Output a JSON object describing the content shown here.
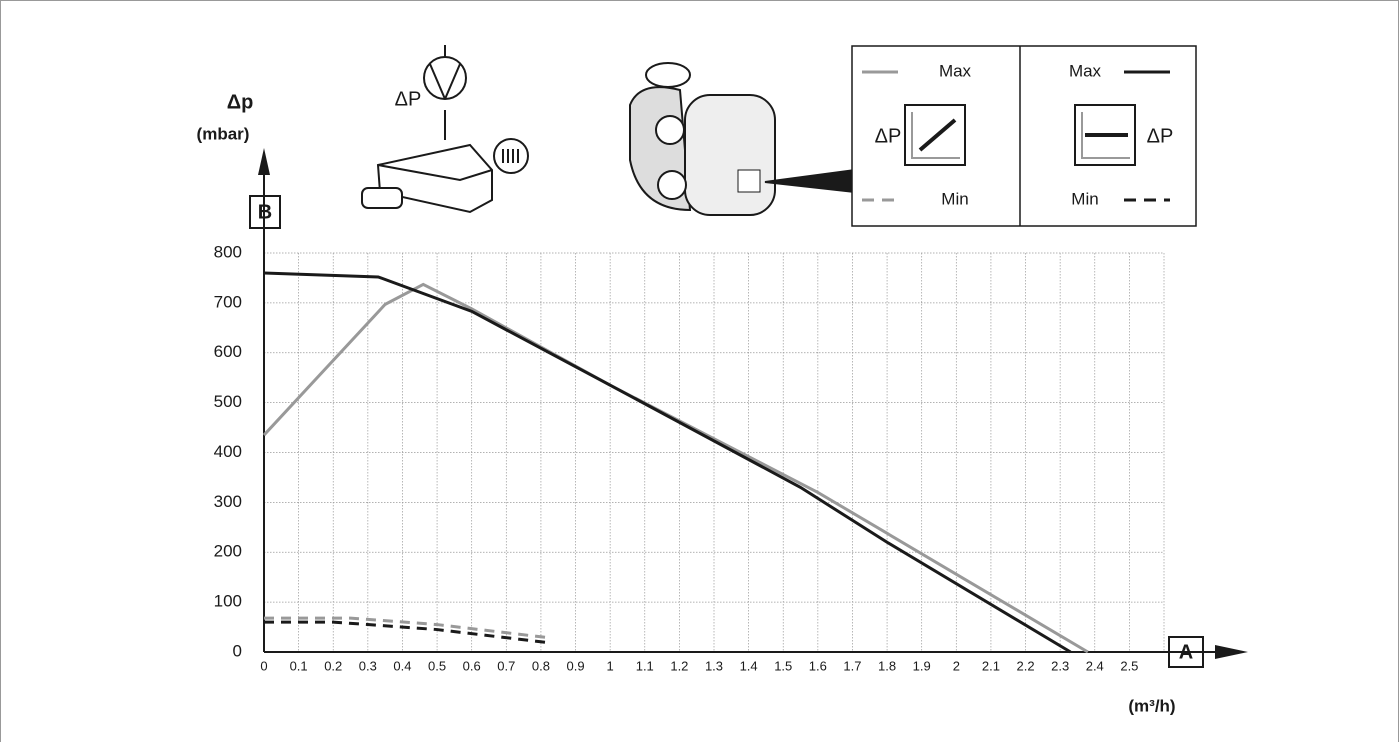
{
  "chart_data": {
    "type": "line",
    "y_label": "Δp",
    "y_unit": "(mbar)",
    "y_axis_marker": "B",
    "x_label": "(m³/h)",
    "x_axis_marker": "A",
    "dp_symbol_pump": "ΔP",
    "dp_symbol_left": "ΔP",
    "dp_symbol_right": "ΔP",
    "xlim": [
      0,
      2.6
    ],
    "ylim": [
      0,
      800
    ],
    "xticks": [
      0,
      0.1,
      0.2,
      0.3,
      0.4,
      0.5,
      0.6,
      0.7,
      0.8,
      0.9,
      1,
      1.1,
      1.2,
      1.3,
      1.4,
      1.5,
      1.6,
      1.7,
      1.8,
      1.9,
      2,
      2.1,
      2.2,
      2.3,
      2.4,
      2.5
    ],
    "yticks": [
      0,
      100,
      200,
      300,
      400,
      500,
      600,
      700,
      800
    ],
    "grid": true,
    "series": [
      {
        "name": "Max",
        "color": "#999999",
        "dash": false,
        "x": [
          0,
          0.35,
          0.46,
          0.6,
          1.0,
          1.6,
          2.38
        ],
        "values": [
          435,
          697,
          737,
          688,
          535,
          320,
          0
        ]
      },
      {
        "name": "Min",
        "color": "#999999",
        "dash": true,
        "x": [
          0,
          0.25,
          0.5,
          0.83
        ],
        "values": [
          68,
          68,
          55,
          28
        ]
      },
      {
        "name": "Max",
        "color": "#1a1a1a",
        "dash": false,
        "x": [
          0,
          0.33,
          0.6,
          1.0,
          1.55,
          1.8,
          2.33
        ],
        "values": [
          760,
          752,
          683,
          535,
          330,
          220,
          0
        ]
      },
      {
        "name": "Min",
        "color": "#1a1a1a",
        "dash": true,
        "x": [
          0,
          0.2,
          0.5,
          0.83
        ],
        "values": [
          60,
          60,
          45,
          18
        ]
      }
    ]
  }
}
